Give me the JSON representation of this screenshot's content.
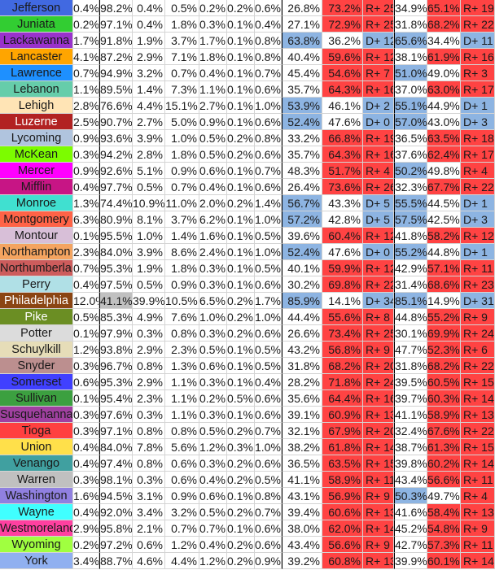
{
  "colors": {
    "dem": "#8DB4E2",
    "rep": "#FF4343",
    "highlight": "#C0C0C0"
  },
  "rows": [
    {
      "name": "Jefferson",
      "color": "#4169E1",
      "text": "#1a1a1a",
      "demo": [
        "0.4%",
        "98.2%",
        "0.4%",
        "0.5%",
        "0.2%",
        "0.2%",
        "0.6%"
      ],
      "a": [
        "26.8%",
        "73.2%",
        "R+ 25"
      ],
      "b": [
        "34.9%",
        "65.1%",
        "R+ 19"
      ]
    },
    {
      "name": "Juniata",
      "color": "#32CD32",
      "text": "#1a1a1a",
      "demo": [
        "0.2%",
        "97.1%",
        "0.4%",
        "1.8%",
        "0.3%",
        "0.1%",
        "0.4%"
      ],
      "a": [
        "27.1%",
        "72.9%",
        "R+ 25"
      ],
      "b": [
        "31.8%",
        "68.2%",
        "R+ 22"
      ]
    },
    {
      "name": "Lackawanna",
      "color": "#9932CC",
      "text": "#1a1a1a",
      "demo": [
        "1.7%",
        "91.8%",
        "1.9%",
        "3.7%",
        "1.7%",
        "0.1%",
        "0.8%"
      ],
      "a": [
        "63.8%",
        "36.2%",
        "D+ 12"
      ],
      "b": [
        "65.6%",
        "34.4%",
        "D+ 11"
      ]
    },
    {
      "name": "Lancaster",
      "color": "#FFA500",
      "text": "#1a1a1a",
      "demo": [
        "4.1%",
        "87.2%",
        "2.9%",
        "7.1%",
        "1.8%",
        "0.1%",
        "0.8%"
      ],
      "a": [
        "40.4%",
        "59.6%",
        "R+ 12"
      ],
      "b": [
        "38.1%",
        "61.9%",
        "R+ 16"
      ]
    },
    {
      "name": "Lawrence",
      "color": "#1E90FF",
      "text": "#1a1a1a",
      "demo": [
        "0.7%",
        "94.9%",
        "3.2%",
        "0.7%",
        "0.4%",
        "0.1%",
        "0.7%"
      ],
      "a": [
        "45.4%",
        "54.6%",
        "R+ 7"
      ],
      "b": [
        "51.0%",
        "49.0%",
        "R+ 3"
      ]
    },
    {
      "name": "Lebanon",
      "color": "#66CDAA",
      "text": "#1a1a1a",
      "demo": [
        "1.1%",
        "89.5%",
        "1.4%",
        "7.3%",
        "1.1%",
        "0.1%",
        "0.6%"
      ],
      "a": [
        "35.7%",
        "64.3%",
        "R+ 16"
      ],
      "b": [
        "37.0%",
        "63.0%",
        "R+ 17"
      ]
    },
    {
      "name": "Lehigh",
      "color": "#FFE4B5",
      "text": "#1a1a1a",
      "demo": [
        "2.8%",
        "76.6%",
        "4.4%",
        "15.1%",
        "2.7%",
        "0.1%",
        "1.0%"
      ],
      "a": [
        "53.9%",
        "46.1%",
        "D+ 2"
      ],
      "b": [
        "55.1%",
        "44.9%",
        "D+ 1"
      ]
    },
    {
      "name": "Luzerne",
      "color": "#B22222",
      "text": "#ffffff",
      "demo": [
        "2.5%",
        "90.7%",
        "2.7%",
        "5.0%",
        "0.9%",
        "0.1%",
        "0.6%"
      ],
      "a": [
        "52.4%",
        "47.6%",
        "D+ 0"
      ],
      "b": [
        "57.0%",
        "43.0%",
        "D+ 3"
      ]
    },
    {
      "name": "Lycoming",
      "color": "#B0C4DE",
      "text": "#1a1a1a",
      "demo": [
        "0.9%",
        "93.6%",
        "3.9%",
        "1.0%",
        "0.5%",
        "0.2%",
        "0.8%"
      ],
      "a": [
        "33.2%",
        "66.8%",
        "R+ 19"
      ],
      "b": [
        "36.5%",
        "63.5%",
        "R+ 18"
      ]
    },
    {
      "name": "McKean",
      "color": "#7CFC00",
      "text": "#1a1a1a",
      "demo": [
        "0.3%",
        "94.2%",
        "2.8%",
        "1.8%",
        "0.5%",
        "0.2%",
        "0.6%"
      ],
      "a": [
        "35.7%",
        "64.3%",
        "R+ 16"
      ],
      "b": [
        "37.6%",
        "62.4%",
        "R+ 17"
      ]
    },
    {
      "name": "Mercer",
      "color": "#FF00FF",
      "text": "#1a1a1a",
      "demo": [
        "0.9%",
        "92.6%",
        "5.1%",
        "0.9%",
        "0.6%",
        "0.1%",
        "0.7%"
      ],
      "a": [
        "48.3%",
        "51.7%",
        "R+ 4"
      ],
      "b": [
        "50.2%",
        "49.8%",
        "R+ 4"
      ]
    },
    {
      "name": "Mifflin",
      "color": "#C71585",
      "text": "#1a1a1a",
      "demo": [
        "0.4%",
        "97.7%",
        "0.5%",
        "0.7%",
        "0.4%",
        "0.1%",
        "0.6%"
      ],
      "a": [
        "26.4%",
        "73.6%",
        "R+ 26"
      ],
      "b": [
        "32.3%",
        "67.7%",
        "R+ 22"
      ]
    },
    {
      "name": "Monroe",
      "color": "#40E0D0",
      "text": "#1a1a1a",
      "demo": [
        "1.3%",
        "74.4%",
        "10.9%",
        "11.0%",
        "2.0%",
        "0.2%",
        "1.4%"
      ],
      "a": [
        "56.7%",
        "43.3%",
        "D+ 5"
      ],
      "b": [
        "55.5%",
        "44.5%",
        "D+ 1"
      ]
    },
    {
      "name": "Montgomery",
      "color": "#FF6347",
      "text": "#1a1a1a",
      "demo": [
        "6.3%",
        "80.9%",
        "8.1%",
        "3.7%",
        "6.2%",
        "0.1%",
        "1.0%"
      ],
      "a": [
        "57.2%",
        "42.8%",
        "D+ 5"
      ],
      "b": [
        "57.5%",
        "42.5%",
        "D+ 3"
      ]
    },
    {
      "name": "Montour",
      "color": "#D8BFD8",
      "text": "#1a1a1a",
      "demo": [
        "0.1%",
        "95.5%",
        "1.0%",
        "1.4%",
        "1.6%",
        "0.1%",
        "0.5%"
      ],
      "a": [
        "39.6%",
        "60.4%",
        "R+ 12"
      ],
      "b": [
        "41.8%",
        "58.2%",
        "R+ 12"
      ]
    },
    {
      "name": "Northampton",
      "color": "#F4A460",
      "text": "#1a1a1a",
      "demo": [
        "2.3%",
        "84.0%",
        "3.9%",
        "8.6%",
        "2.4%",
        "0.1%",
        "1.0%"
      ],
      "a": [
        "52.4%",
        "47.6%",
        "D+ 0"
      ],
      "b": [
        "55.2%",
        "44.8%",
        "D+ 1"
      ]
    },
    {
      "name": "Northumberland",
      "color": "#CD5C5C",
      "text": "#1a1a1a",
      "demo": [
        "0.7%",
        "95.3%",
        "1.9%",
        "1.8%",
        "0.3%",
        "0.1%",
        "0.5%"
      ],
      "a": [
        "40.1%",
        "59.9%",
        "R+ 12"
      ],
      "b": [
        "42.9%",
        "57.1%",
        "R+ 11"
      ]
    },
    {
      "name": "Perry",
      "color": "#B0E0E6",
      "text": "#1a1a1a",
      "demo": [
        "0.4%",
        "97.5%",
        "0.5%",
        "0.9%",
        "0.3%",
        "0.1%",
        "0.6%"
      ],
      "a": [
        "30.2%",
        "69.8%",
        "R+ 22"
      ],
      "b": [
        "31.4%",
        "68.6%",
        "R+ 23"
      ]
    },
    {
      "name": "Philadelphia",
      "color": "#8B4513",
      "text": "#ffffff",
      "demo": [
        "12.0%",
        "41.1%",
        "39.9%",
        "10.5%",
        "6.5%",
        "0.2%",
        "1.7%"
      ],
      "highlight": 1,
      "a": [
        "85.9%",
        "14.1%",
        "D+ 34"
      ],
      "b": [
        "85.1%",
        "14.9%",
        "D+ 31"
      ]
    },
    {
      "name": "Pike",
      "color": "#6B8E23",
      "text": "#ffffff",
      "demo": [
        "0.5%",
        "85.3%",
        "4.9%",
        "7.6%",
        "1.0%",
        "0.2%",
        "1.0%"
      ],
      "a": [
        "44.4%",
        "55.6%",
        "R+ 8"
      ],
      "b": [
        "44.8%",
        "55.2%",
        "R+ 9"
      ]
    },
    {
      "name": "Potter",
      "color": "#DCDCDC",
      "text": "#1a1a1a",
      "demo": [
        "0.1%",
        "97.9%",
        "0.3%",
        "0.8%",
        "0.3%",
        "0.2%",
        "0.6%"
      ],
      "a": [
        "26.6%",
        "73.4%",
        "R+ 25"
      ],
      "b": [
        "30.1%",
        "69.9%",
        "R+ 24"
      ]
    },
    {
      "name": "Schuylkill",
      "color": "#E6DDB8",
      "text": "#1a1a1a",
      "demo": [
        "1.2%",
        "93.8%",
        "2.9%",
        "2.3%",
        "0.5%",
        "0.1%",
        "0.5%"
      ],
      "a": [
        "43.2%",
        "56.8%",
        "R+ 9"
      ],
      "b": [
        "47.7%",
        "52.3%",
        "R+ 6"
      ]
    },
    {
      "name": "Snyder",
      "color": "#BC8F8F",
      "text": "#1a1a1a",
      "demo": [
        "0.3%",
        "96.7%",
        "0.8%",
        "1.3%",
        "0.6%",
        "0.1%",
        "0.5%"
      ],
      "a": [
        "31.8%",
        "68.2%",
        "R+ 20"
      ],
      "b": [
        "31.8%",
        "68.2%",
        "R+ 22"
      ]
    },
    {
      "name": "Somerset",
      "color": "#4040FF",
      "text": "#1a1a1a",
      "demo": [
        "0.6%",
        "95.3%",
        "2.9%",
        "1.1%",
        "0.3%",
        "0.1%",
        "0.4%"
      ],
      "a": [
        "28.2%",
        "71.8%",
        "R+ 24"
      ],
      "b": [
        "39.5%",
        "60.5%",
        "R+ 15"
      ]
    },
    {
      "name": "Sullivan",
      "color": "#3CA040",
      "text": "#1a1a1a",
      "demo": [
        "0.1%",
        "95.4%",
        "2.3%",
        "1.1%",
        "0.2%",
        "0.5%",
        "0.6%"
      ],
      "a": [
        "35.6%",
        "64.4%",
        "R+ 16"
      ],
      "b": [
        "39.7%",
        "60.3%",
        "R+ 14"
      ]
    },
    {
      "name": "Susquehanna",
      "color": "#A040A0",
      "text": "#1a1a1a",
      "demo": [
        "0.3%",
        "97.6%",
        "0.3%",
        "1.1%",
        "0.3%",
        "0.1%",
        "0.6%"
      ],
      "a": [
        "39.1%",
        "60.9%",
        "R+ 13"
      ],
      "b": [
        "41.1%",
        "58.9%",
        "R+ 13"
      ]
    },
    {
      "name": "Tioga",
      "color": "#FF4040",
      "text": "#1a1a1a",
      "demo": [
        "0.3%",
        "97.1%",
        "0.8%",
        "0.8%",
        "0.5%",
        "0.2%",
        "0.7%"
      ],
      "a": [
        "32.1%",
        "67.9%",
        "R+ 20"
      ],
      "b": [
        "32.4%",
        "67.6%",
        "R+ 22"
      ]
    },
    {
      "name": "Union",
      "color": "#FFE04A",
      "text": "#1a1a1a",
      "demo": [
        "0.4%",
        "84.0%",
        "7.8%",
        "5.6%",
        "1.2%",
        "0.3%",
        "1.0%"
      ],
      "a": [
        "38.2%",
        "61.8%",
        "R+ 14"
      ],
      "b": [
        "38.7%",
        "61.3%",
        "R+ 15"
      ]
    },
    {
      "name": "Venango",
      "color": "#40A0A0",
      "text": "#1a1a1a",
      "demo": [
        "0.4%",
        "97.4%",
        "0.8%",
        "0.6%",
        "0.3%",
        "0.2%",
        "0.6%"
      ],
      "a": [
        "36.5%",
        "63.5%",
        "R+ 15"
      ],
      "b": [
        "39.8%",
        "60.2%",
        "R+ 14"
      ]
    },
    {
      "name": "Warren",
      "color": "#C0C0C0",
      "text": "#1a1a1a",
      "demo": [
        "0.3%",
        "98.1%",
        "0.3%",
        "0.6%",
        "0.4%",
        "0.2%",
        "0.5%"
      ],
      "a": [
        "41.1%",
        "58.9%",
        "R+ 11"
      ],
      "b": [
        "43.4%",
        "56.6%",
        "R+ 11"
      ]
    },
    {
      "name": "Washington",
      "color": "#9080E0",
      "text": "#1a1a1a",
      "demo": [
        "1.6%",
        "94.5%",
        "3.1%",
        "0.9%",
        "0.6%",
        "0.1%",
        "0.8%"
      ],
      "a": [
        "43.1%",
        "56.9%",
        "R+ 9"
      ],
      "b": [
        "50.3%",
        "49.7%",
        "R+ 4"
      ]
    },
    {
      "name": "Wayne",
      "color": "#40FFFF",
      "text": "#1a1a1a",
      "demo": [
        "0.4%",
        "92.0%",
        "3.4%",
        "3.2%",
        "0.5%",
        "0.2%",
        "0.7%"
      ],
      "a": [
        "39.4%",
        "60.6%",
        "R+ 13"
      ],
      "b": [
        "41.6%",
        "58.4%",
        "R+ 13"
      ]
    },
    {
      "name": "Westmoreland",
      "color": "#FF40A0",
      "text": "#1a1a1a",
      "demo": [
        "2.9%",
        "95.8%",
        "2.1%",
        "0.7%",
        "0.7%",
        "0.1%",
        "0.6%"
      ],
      "a": [
        "38.0%",
        "62.0%",
        "R+ 14"
      ],
      "b": [
        "45.2%",
        "54.8%",
        "R+ 9"
      ]
    },
    {
      "name": "Wyoming",
      "color": "#A0FF40",
      "text": "#1a1a1a",
      "demo": [
        "0.2%",
        "97.2%",
        "0.6%",
        "1.2%",
        "0.4%",
        "0.2%",
        "0.6%"
      ],
      "a": [
        "43.4%",
        "56.6%",
        "R+ 9"
      ],
      "b": [
        "42.7%",
        "57.3%",
        "R+ 11"
      ]
    },
    {
      "name": "York",
      "color": "#90B0F0",
      "text": "#1a1a1a",
      "demo": [
        "3.4%",
        "88.7%",
        "4.6%",
        "4.4%",
        "1.2%",
        "0.2%",
        "0.9%"
      ],
      "a": [
        "39.2%",
        "60.8%",
        "R+ 13"
      ],
      "b": [
        "39.9%",
        "60.1%",
        "R+ 14"
      ]
    }
  ]
}
